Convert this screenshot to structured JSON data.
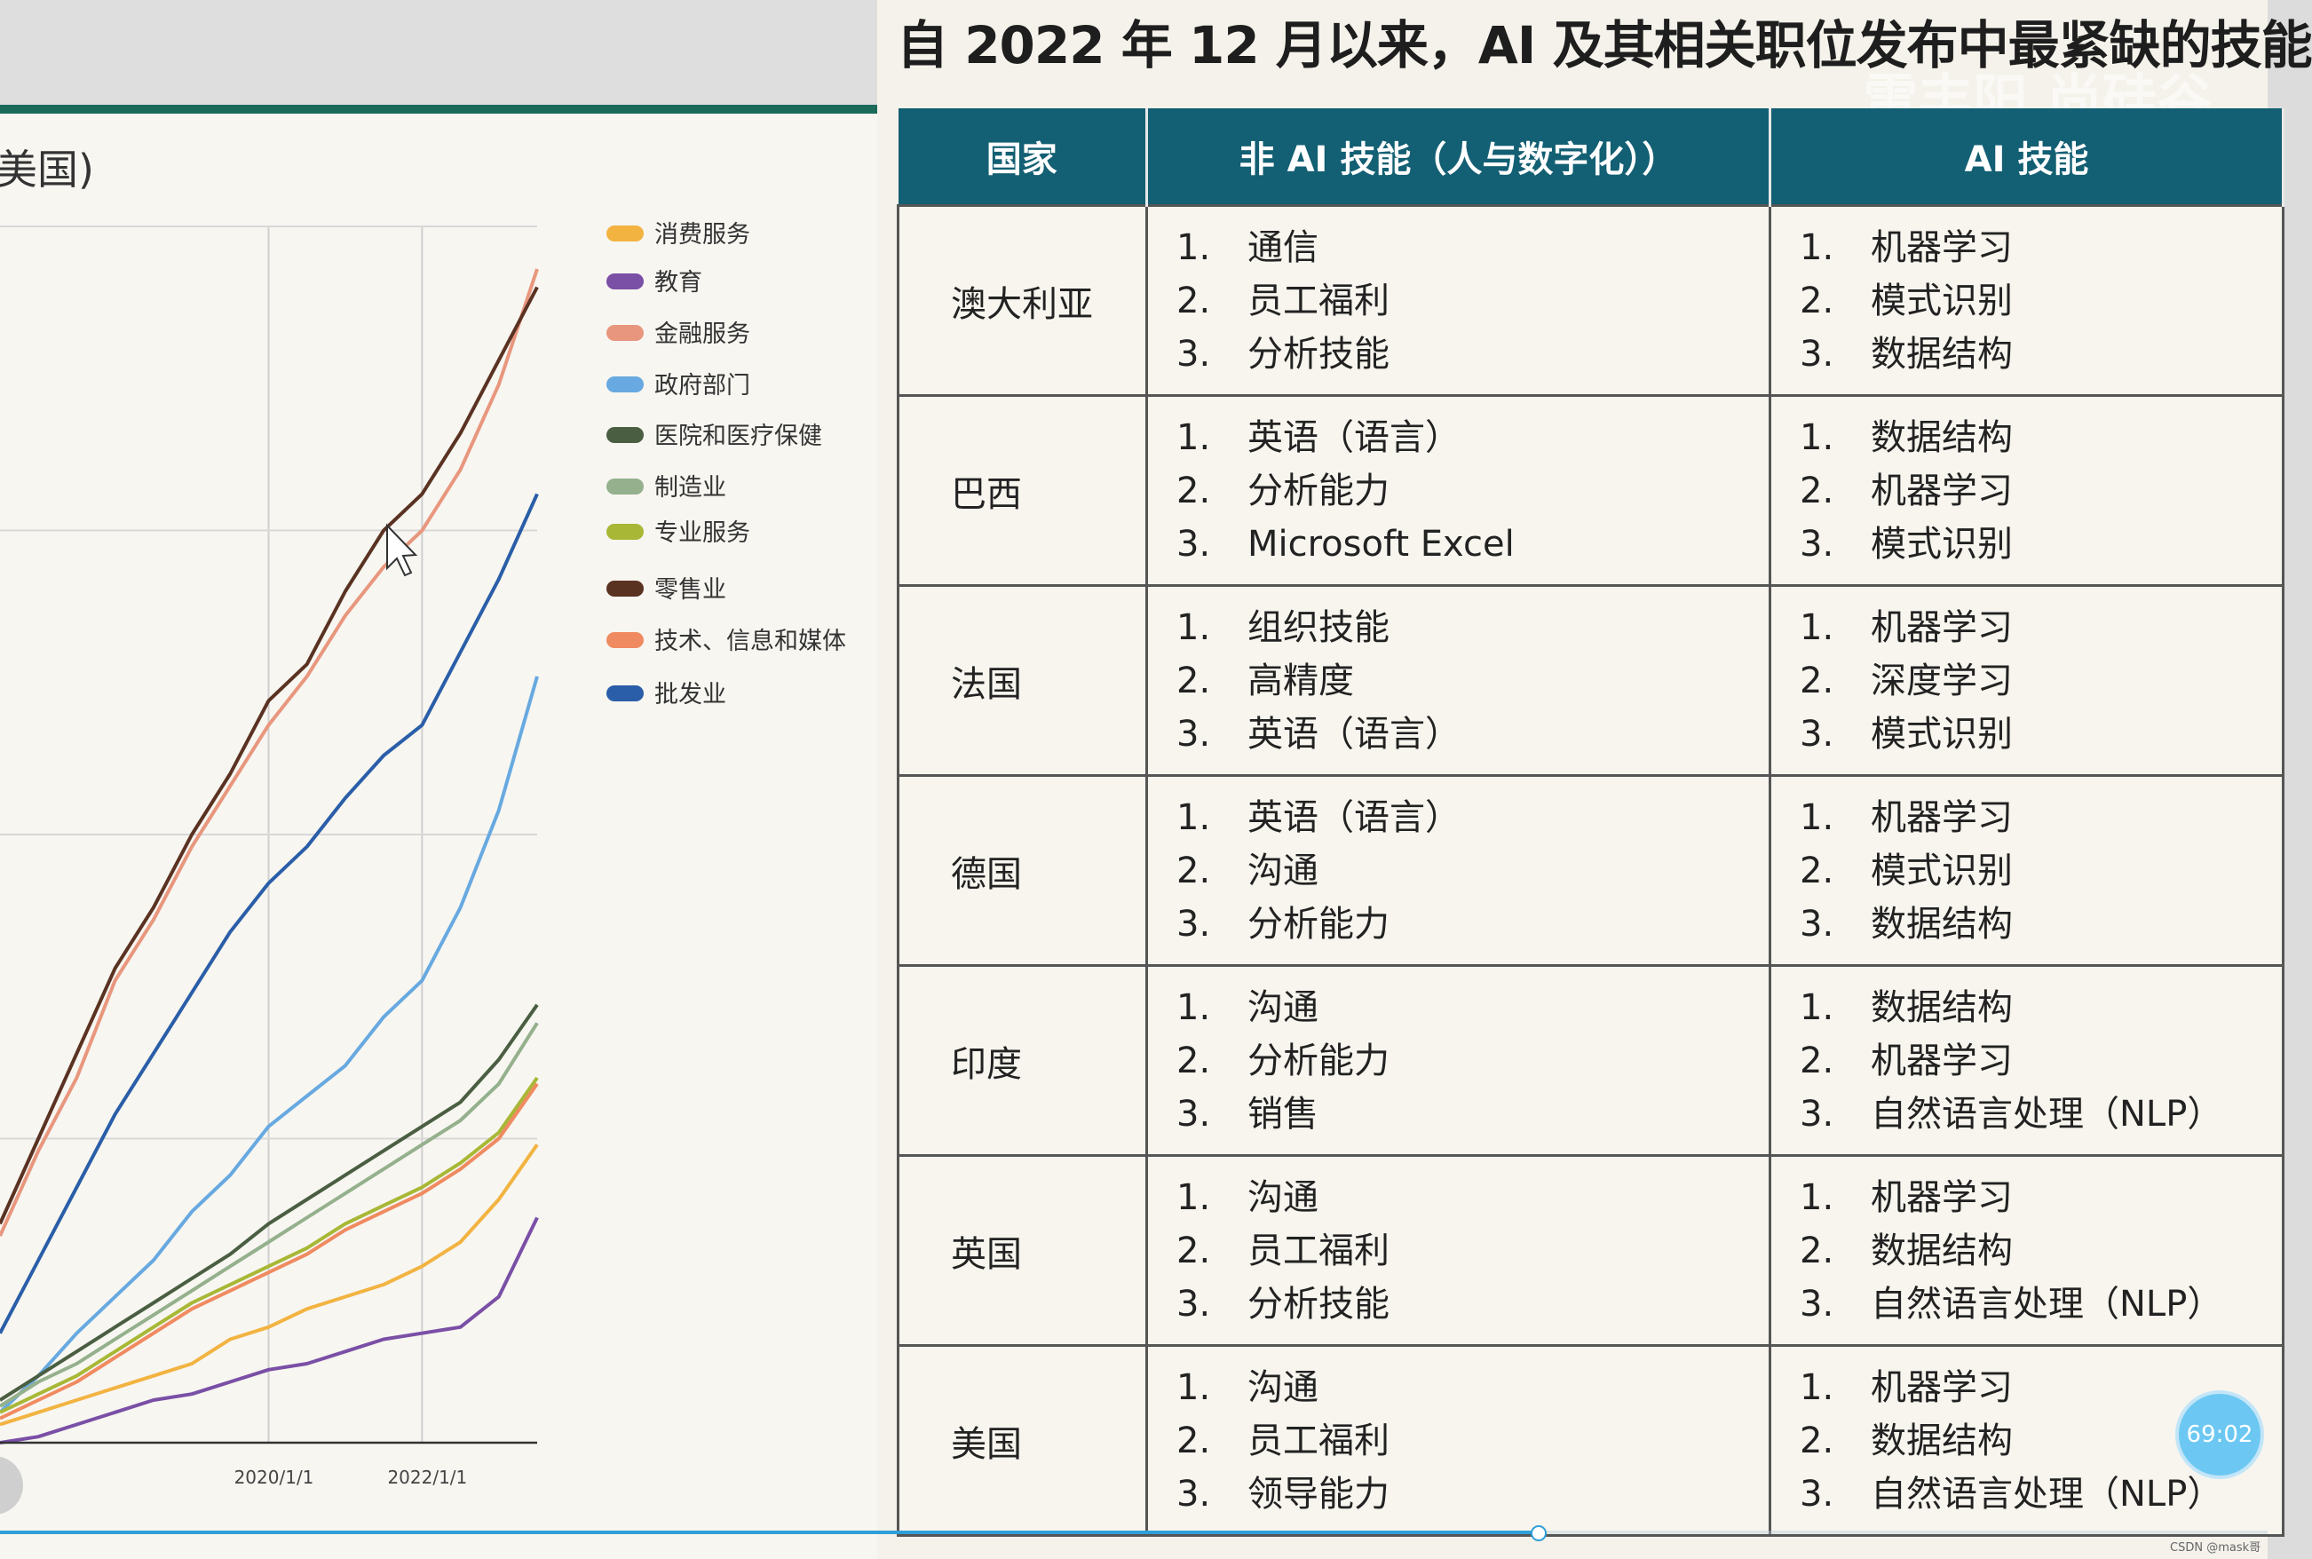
{
  "left_slide": {
    "heading": "美国)",
    "footer": "",
    "chart_data": {
      "type": "line",
      "title": "美国)",
      "xlabel": "",
      "ylabel": "",
      "x_tick_labels": [
        "2020/1/1",
        "2022/1/1"
      ],
      "x_range": [
        2016.5,
        2023.5
      ],
      "y_range": [
        0,
        100
      ],
      "grid": true,
      "legend_placement": "right",
      "x": [
        2016.5,
        2017.0,
        2017.5,
        2018.0,
        2018.5,
        2019.0,
        2019.5,
        2020.0,
        2020.5,
        2021.0,
        2021.5,
        2022.0,
        2022.5,
        2023.0,
        2023.5
      ],
      "series": [
        {
          "name": "消费服务",
          "color": "#f2b341",
          "values": [
            1.5,
            2.5,
            3.5,
            4.5,
            5.5,
            6.5,
            8.5,
            9.5,
            11,
            12,
            13,
            14.5,
            16.5,
            20,
            24.5
          ]
        },
        {
          "name": "教育",
          "color": "#7a4fa6",
          "values": [
            0,
            0.5,
            1.5,
            2.5,
            3.5,
            4.0,
            5.0,
            6.0,
            6.5,
            7.5,
            8.5,
            9.0,
            9.5,
            12,
            18.5
          ]
        },
        {
          "name": "金融服务",
          "color": "#e8977e",
          "values": [
            17,
            24,
            30,
            38,
            43,
            49,
            54,
            59,
            63,
            68,
            72,
            75,
            80,
            87,
            96.5
          ]
        },
        {
          "name": "政府部门",
          "color": "#67a9e0",
          "values": [
            2.5,
            5.5,
            9,
            12,
            15,
            19,
            22,
            26,
            28.5,
            31,
            35,
            38,
            44,
            52,
            63
          ]
        },
        {
          "name": "医院和医疗保健",
          "color": "#4a5e42",
          "values": [
            3.5,
            5.5,
            7.5,
            9.5,
            11.5,
            13.5,
            15.5,
            18,
            20,
            22,
            24,
            26,
            28,
            31.5,
            36
          ]
        },
        {
          "name": "制造业",
          "color": "#94b08c",
          "values": [
            3,
            5,
            6.5,
            8.5,
            10.5,
            12.5,
            14.5,
            16.5,
            18.5,
            20.5,
            22.5,
            24.5,
            26.5,
            29.5,
            34.5
          ]
        },
        {
          "name": "专业服务",
          "color": "#a8b836",
          "values": [
            2.5,
            4,
            5.5,
            7.5,
            9.5,
            11.5,
            13,
            14.5,
            16,
            18,
            19.5,
            21,
            23,
            25.5,
            30
          ]
        },
        {
          "name": "零售业",
          "color": "#5a3222",
          "values": [
            18,
            25,
            32,
            39,
            44,
            50,
            55,
            61,
            64,
            70,
            75,
            78,
            83,
            89,
            95
          ]
        },
        {
          "name": "技术、信息和媒体",
          "color": "#f08a60",
          "values": [
            2,
            3.5,
            5,
            7,
            9,
            11,
            12.5,
            14,
            15.5,
            17.5,
            19,
            20.5,
            22.5,
            25,
            29.5
          ]
        },
        {
          "name": "批发业",
          "color": "#2a5ea8",
          "values": [
            9,
            15,
            21,
            27,
            32,
            37,
            42,
            46,
            49,
            53,
            56.5,
            59,
            65,
            71,
            78
          ]
        }
      ]
    }
  },
  "right_slide": {
    "title": "自 2022 年 12 月以来，AI 及其相关职位发布中最紧缺的技能",
    "watermark": "雷丰阳 尚硅谷",
    "table": {
      "headers": [
        "国家",
        "非 AI 技能（人与数字化））",
        "AI 技能"
      ],
      "rows": [
        {
          "country": "澳大利亚",
          "non_ai": [
            "通信",
            "员工福利",
            "分析技能"
          ],
          "ai": [
            "机器学习",
            "模式识别",
            "数据结构"
          ]
        },
        {
          "country": "巴西",
          "non_ai": [
            "英语（语言）",
            "分析能力",
            "Microsoft Excel"
          ],
          "ai": [
            "数据结构",
            "机器学习",
            "模式识别"
          ]
        },
        {
          "country": "法国",
          "non_ai": [
            "组织技能",
            "高精度",
            "英语（语言）"
          ],
          "ai": [
            "机器学习",
            "深度学习",
            "模式识别"
          ]
        },
        {
          "country": "德国",
          "non_ai": [
            "英语（语言）",
            "沟通",
            "分析能力"
          ],
          "ai": [
            "机器学习",
            "模式识别",
            "数据结构"
          ]
        },
        {
          "country": "印度",
          "non_ai": [
            "沟通",
            "分析能力",
            "销售"
          ],
          "ai": [
            "数据结构",
            "机器学习",
            "自然语言处理（NLP）"
          ]
        },
        {
          "country": "英国",
          "non_ai": [
            "沟通",
            "员工福利",
            "分析技能"
          ],
          "ai": [
            "机器学习",
            "数据结构",
            "自然语言处理（NLP）"
          ]
        },
        {
          "country": "美国",
          "non_ai": [
            "沟通",
            "员工福利",
            "领导能力"
          ],
          "ai": [
            "机器学习",
            "数据结构",
            "自然语言处理（NLP）"
          ]
        }
      ]
    }
  },
  "overlay": {
    "timer": "69:02",
    "credit": "CSDN @mask哥",
    "progress_fraction": 0.68
  }
}
